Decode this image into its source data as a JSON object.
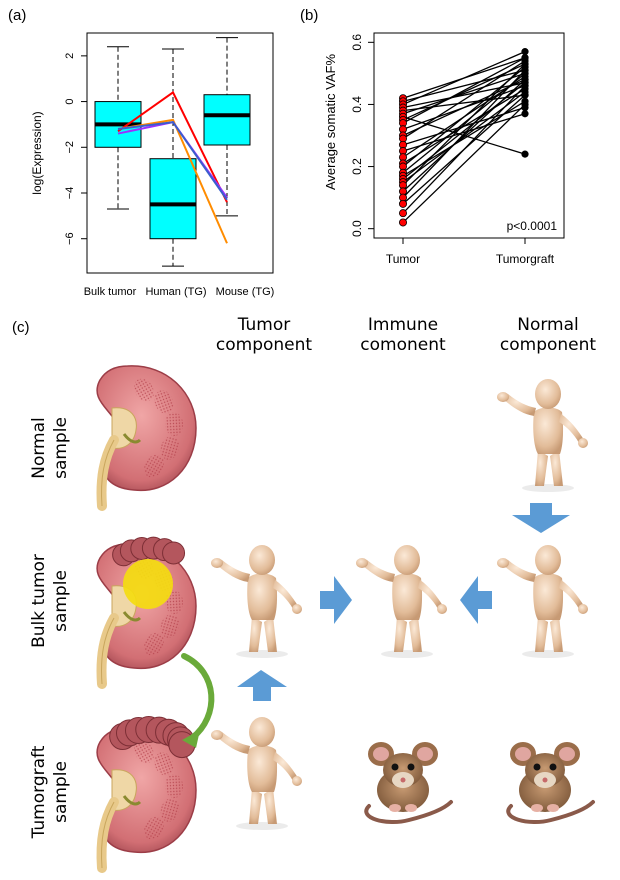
{
  "panels": {
    "a": {
      "label": "(a)"
    },
    "b": {
      "label": "(b)"
    },
    "c": {
      "label": "(c)"
    }
  },
  "chart_data": [
    {
      "type": "box",
      "panel": "(a)",
      "ylabel": "log(Expression)",
      "categories": [
        "Bulk tumor",
        "Human (TG)",
        "Mouse (TG)"
      ],
      "yticks": [
        2,
        0,
        -2,
        -4,
        -6
      ],
      "ylim": [
        -7.5,
        3.0
      ],
      "box_color": "#00ffff",
      "boxes": [
        {
          "name": "Bulk tumor",
          "whisker_low": -4.7,
          "q1": -2.0,
          "median": -1.0,
          "q3": 0.0,
          "whisker_high": 2.4
        },
        {
          "name": "Human (TG)",
          "whisker_low": -7.2,
          "q1": -6.0,
          "median": -4.5,
          "q3": -2.5,
          "whisker_high": 2.3
        },
        {
          "name": "Mouse (TG)",
          "whisker_low": -5.0,
          "q1": -1.9,
          "median": -0.6,
          "q3": 0.3,
          "whisker_high": 2.8
        }
      ],
      "series": [
        {
          "color": "#ff0000",
          "values": [
            -1.3,
            0.4,
            -4.4
          ]
        },
        {
          "color": "#ff8c00",
          "values": [
            -1.2,
            -0.8,
            -6.2
          ]
        },
        {
          "color": "#9b30ff",
          "values": [
            -1.4,
            -0.9,
            -4.2
          ]
        },
        {
          "color": "#3a5fcd",
          "values": [
            -1.2,
            -0.9,
            -4.3
          ]
        }
      ]
    },
    {
      "type": "paired-scatter",
      "panel": "(b)",
      "ylabel": "Average somatic VAF%",
      "categories": [
        "Tumor",
        "Tumorgraft"
      ],
      "yticks": [
        "0.0",
        "0.2",
        "0.4",
        "0.6"
      ],
      "ylim": [
        -0.03,
        0.63
      ],
      "annotation": "p<0.0001",
      "left_color": "#ff0000",
      "right_color": "#000000",
      "pairs": [
        [
          0.42,
          0.55
        ],
        [
          0.41,
          0.51
        ],
        [
          0.4,
          0.57
        ],
        [
          0.39,
          0.47
        ],
        [
          0.38,
          0.43
        ],
        [
          0.37,
          0.5
        ],
        [
          0.36,
          0.24
        ],
        [
          0.35,
          0.53
        ],
        [
          0.34,
          0.55
        ],
        [
          0.32,
          0.46
        ],
        [
          0.3,
          0.48
        ],
        [
          0.29,
          0.54
        ],
        [
          0.27,
          0.39
        ],
        [
          0.25,
          0.37
        ],
        [
          0.23,
          0.49
        ],
        [
          0.21,
          0.45
        ],
        [
          0.2,
          0.52
        ],
        [
          0.18,
          0.5
        ],
        [
          0.17,
          0.41
        ],
        [
          0.16,
          0.47
        ],
        [
          0.15,
          0.44
        ],
        [
          0.14,
          0.53
        ],
        [
          0.12,
          0.48
        ],
        [
          0.1,
          0.51
        ],
        [
          0.08,
          0.43
        ],
        [
          0.05,
          0.46
        ],
        [
          0.02,
          0.4
        ]
      ]
    }
  ],
  "diagram": {
    "columns": [
      "Tumor\ncomponent",
      "Immune\ncomonent",
      "Normal\ncomponent"
    ],
    "rows": [
      "Normal\nsample",
      "Bulk tumor\nsample",
      "Tumorgraft\nsample"
    ],
    "arrow_color": "#5b9bd5",
    "curve_color": "#6aaa3a"
  }
}
